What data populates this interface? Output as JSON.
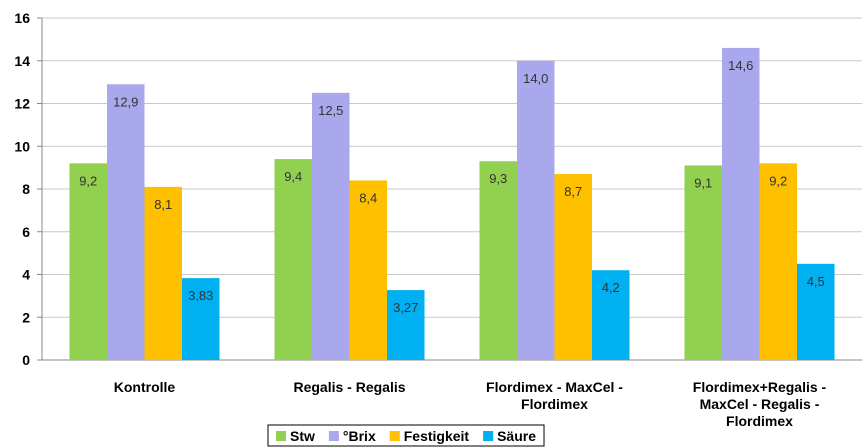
{
  "chart_data": {
    "type": "bar",
    "categories": [
      "Kontrolle",
      "Regalis - Regalis",
      "Flordimex - MaxCel - Flordimex",
      "Flordimex+Regalis - MaxCel - Regalis - Flordimex"
    ],
    "series": [
      {
        "name": "Stw",
        "color": "#92d050",
        "values": [
          9.2,
          9.4,
          9.3,
          9.1
        ],
        "value_labels": [
          "9,2",
          "9,4",
          "9,3",
          "9,1"
        ]
      },
      {
        "name": "°Brix",
        "color": "#aaa8ec",
        "values": [
          12.9,
          12.5,
          14.0,
          14.6
        ],
        "value_labels": [
          "12,9",
          "12,5",
          "14,0",
          "14,6"
        ]
      },
      {
        "name": "Festigkeit",
        "color": "#ffc000",
        "values": [
          8.1,
          8.4,
          8.7,
          9.2
        ],
        "value_labels": [
          "8,1",
          "8,4",
          "8,7",
          "9,2"
        ]
      },
      {
        "name": "Säure",
        "color": "#00b0f0",
        "values": [
          3.83,
          3.27,
          4.2,
          4.5
        ],
        "value_labels": [
          "3,83",
          "3,27",
          "4,2",
          "4,5"
        ]
      }
    ],
    "ylim": [
      0,
      16
    ],
    "yticks": [
      0,
      2,
      4,
      6,
      8,
      10,
      12,
      14,
      16
    ],
    "grid": true,
    "legend": "bottom"
  }
}
